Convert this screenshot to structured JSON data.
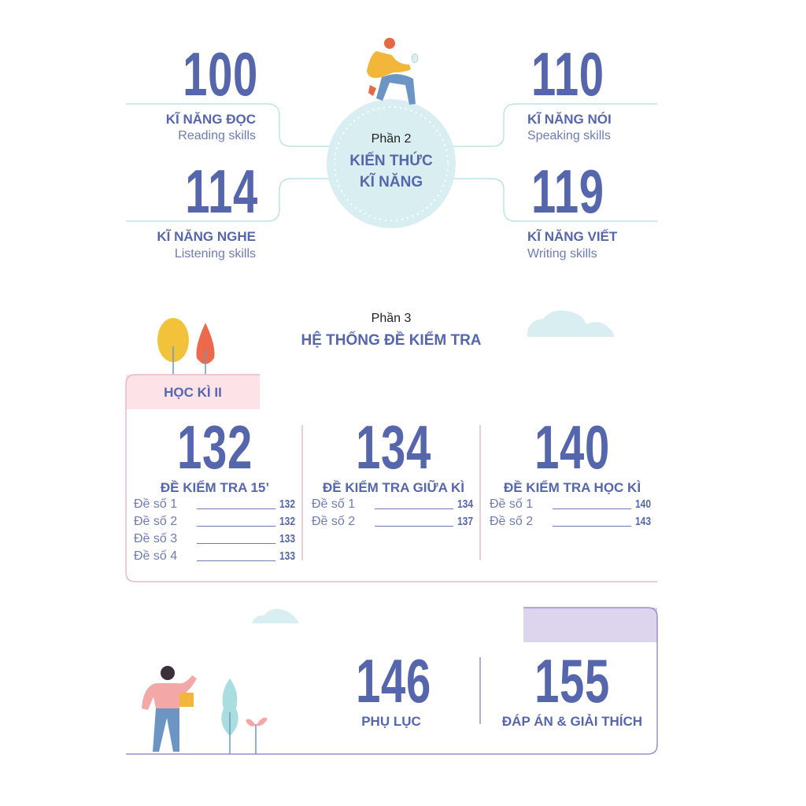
{
  "part2": {
    "label": "Phần 2",
    "title_line1": "KIẾN THỨC",
    "title_line2": "KĨ NĂNG",
    "skills": [
      {
        "page": "100",
        "title": "KĨ NĂNG ĐỌC",
        "subtitle": "Reading skills"
      },
      {
        "page": "110",
        "title": "KĨ NĂNG NÓI",
        "subtitle": "Speaking skills"
      },
      {
        "page": "114",
        "title": "KĨ NĂNG NGHE",
        "subtitle": "Listening skills"
      },
      {
        "page": "119",
        "title": "KĨ NĂNG VIẾT",
        "subtitle": "Writing skills"
      }
    ]
  },
  "part3": {
    "label": "Phần 3",
    "title": "HỆ THỐNG ĐỀ KIỂM TRA",
    "semester": "HỌC KÌ II",
    "columns": [
      {
        "page": "132",
        "title": "ĐỀ KIỂM TRA 15’",
        "items": [
          {
            "name": "Đề số 1",
            "page": "132"
          },
          {
            "name": "Đề số 2",
            "page": "132"
          },
          {
            "name": "Đề số 3",
            "page": "133"
          },
          {
            "name": "Đề số 4",
            "page": "133"
          }
        ]
      },
      {
        "page": "134",
        "title": "ĐỀ KIỂM TRA GIỮA KÌ",
        "items": [
          {
            "name": "Đề số 1",
            "page": "134"
          },
          {
            "name": "Đề số 2",
            "page": "137"
          }
        ]
      },
      {
        "page": "140",
        "title": "ĐỀ KIỂM TRA HỌC KÌ",
        "items": [
          {
            "name": "Đề số 1",
            "page": "140"
          },
          {
            "name": "Đề số 2",
            "page": "143"
          }
        ]
      }
    ]
  },
  "appendix": [
    {
      "page": "146",
      "title": "PHỤ LỤC"
    },
    {
      "page": "155",
      "title": "ĐÁP ÁN & GIẢI THÍCH"
    }
  ],
  "colors": {
    "primary": "#5566ad",
    "circle": "#d8eef0",
    "pink": "#fde3e8",
    "purple": "#ddd5ee"
  }
}
